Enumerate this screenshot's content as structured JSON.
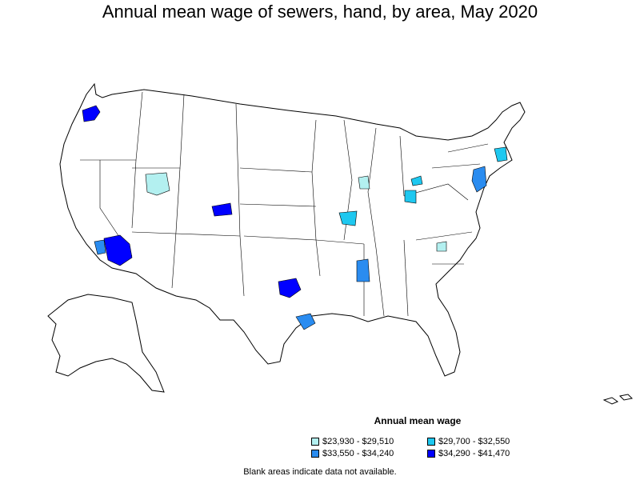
{
  "title": "Annual mean wage of sewers, hand, by area, May 2020",
  "legend": {
    "title": "Annual mean wage",
    "items": [
      {
        "label": "$23,930 - $29,510",
        "color": "#b3f0f0"
      },
      {
        "label": "$29,700 - $32,550",
        "color": "#1ec8f0"
      },
      {
        "label": "$33,550 - $34,240",
        "color": "#2a8cf0"
      },
      {
        "label": "$34,290 - $41,470",
        "color": "#0000ff"
      }
    ]
  },
  "footnote": "Blank areas indicate data not available.",
  "map_data": {
    "type": "choropleth",
    "region": "United States (metropolitan and nonmetropolitan areas)",
    "highlighted_areas": [
      {
        "area": "Portland, OR",
        "bin": 3
      },
      {
        "area": "Southern Idaho / Northern Utah",
        "bin": 0
      },
      {
        "area": "Grand Junction, CO area",
        "bin": 3
      },
      {
        "area": "Los Angeles, CA area",
        "bin": 3
      },
      {
        "area": "Oxnard, CA area",
        "bin": 2
      },
      {
        "area": "Dallas-Fort Worth, TX",
        "bin": 3
      },
      {
        "area": "Houston, TX",
        "bin": 2
      },
      {
        "area": "St. Louis, MO-IL",
        "bin": 1
      },
      {
        "area": "Northern Mississippi",
        "bin": 2
      },
      {
        "area": "Chicago area, IL",
        "bin": 0
      },
      {
        "area": "Columbus, OH",
        "bin": 1
      },
      {
        "area": "Cleveland, OH",
        "bin": 1
      },
      {
        "area": "New York-Newark, NY-NJ",
        "bin": 2
      },
      {
        "area": "Boston, MA",
        "bin": 1
      },
      {
        "area": "Western Virginia",
        "bin": 0
      }
    ]
  }
}
